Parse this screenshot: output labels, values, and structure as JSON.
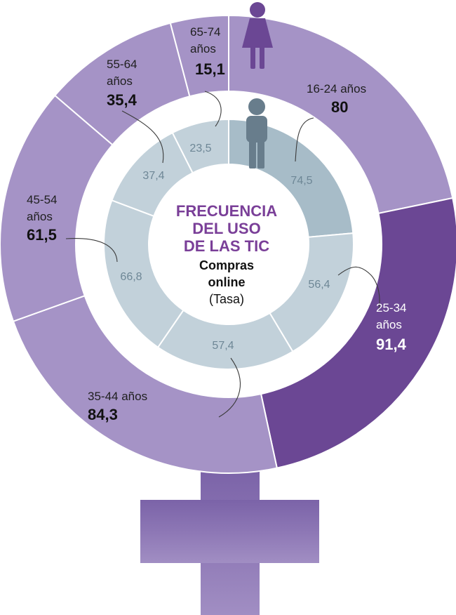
{
  "center": {
    "title_lines": [
      "FRECUENCIA",
      "DEL USO",
      "DE LAS TIC"
    ],
    "subtitle_lines": [
      "Compras",
      "online"
    ],
    "unit": "(Tasa)"
  },
  "colors": {
    "women": "#a593c6",
    "women_highlight": "#6b4794",
    "men": "#c2d1da",
    "men_highlight": "#a7bcc8",
    "title": "#7a3f98",
    "inner_value": "#6e8796",
    "icon_woman": "#6b4794",
    "icon_man": "#687d8c"
  },
  "icons": {
    "outer_ring": "woman-icon",
    "inner_ring": "man-icon"
  },
  "chart_data": {
    "type": "pie",
    "style": "nested donut",
    "categories": [
      "16-24 años",
      "25-34 años",
      "35-44 años",
      "45-54 años",
      "55-64 años",
      "65-74 años"
    ],
    "series": [
      {
        "ring": "outer",
        "icon": "woman-icon",
        "label_lines": [
          [
            "16-24 años"
          ],
          [
            "25-34",
            "años"
          ],
          [
            "35-44 años"
          ],
          [
            "45-54",
            "años"
          ],
          [
            "55-64",
            "años"
          ],
          [
            "65-74",
            "años"
          ]
        ],
        "value_labels": [
          "80",
          "91,4",
          "84,3",
          "61,5",
          "35,4",
          "15,1"
        ],
        "values": [
          80,
          91.4,
          84.3,
          61.5,
          35.4,
          15.1
        ]
      },
      {
        "ring": "inner",
        "icon": "man-icon",
        "value_labels": [
          "74,5",
          "56,4",
          "57,4",
          "66,8",
          "37,4",
          "23,5"
        ],
        "values": [
          74.5,
          56.4,
          57.4,
          66.8,
          37.4,
          23.5
        ]
      }
    ],
    "highlighted_category": "25-34 años"
  }
}
